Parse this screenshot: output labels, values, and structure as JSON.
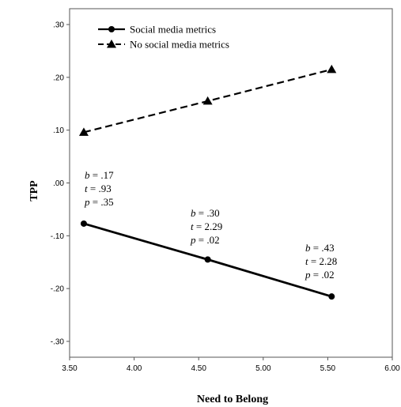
{
  "chart_data": {
    "type": "line",
    "xlabel": "Need to Belong",
    "ylabel": "TPP",
    "xlim": [
      3.5,
      6.0
    ],
    "ylim": [
      -0.33,
      0.33
    ],
    "x_ticks": [
      "3.50",
      "4.00",
      "4.50",
      "5.00",
      "5.50",
      "6.00"
    ],
    "y_ticks": [
      ".30",
      ".20",
      ".10",
      ".00",
      "-.10",
      "-.20",
      "-.30"
    ],
    "grid": false,
    "legend_position": "top-left",
    "series": [
      {
        "name": "Social media metrics",
        "x": [
          3.61,
          4.57,
          5.53
        ],
        "y": [
          -0.077,
          -0.145,
          -0.215
        ],
        "line_style": "solid",
        "marker": "circle",
        "color": "#000000"
      },
      {
        "name": "No social media metrics",
        "x": [
          3.61,
          4.57,
          5.53
        ],
        "y": [
          0.096,
          0.155,
          0.215
        ],
        "line_style": "dashed",
        "marker": "triangle",
        "color": "#000000"
      }
    ],
    "annotations": [
      {
        "at_x": 3.61,
        "lines": [
          {
            "key": "b",
            "text": "b = .17"
          },
          {
            "key": "t",
            "text": "t =  .93"
          },
          {
            "key": "p",
            "text": "p = .35"
          }
        ]
      },
      {
        "at_x": 4.57,
        "lines": [
          {
            "key": "b",
            "text": "b = .30"
          },
          {
            "key": "t",
            "text": "t = 2.29"
          },
          {
            "key": "p",
            "text": "p = .02"
          }
        ]
      },
      {
        "at_x": 5.53,
        "lines": [
          {
            "key": "b",
            "text": "b = .43"
          },
          {
            "key": "t",
            "text": "t = 2.28"
          },
          {
            "key": "p",
            "text": "p = .02"
          }
        ]
      }
    ]
  }
}
